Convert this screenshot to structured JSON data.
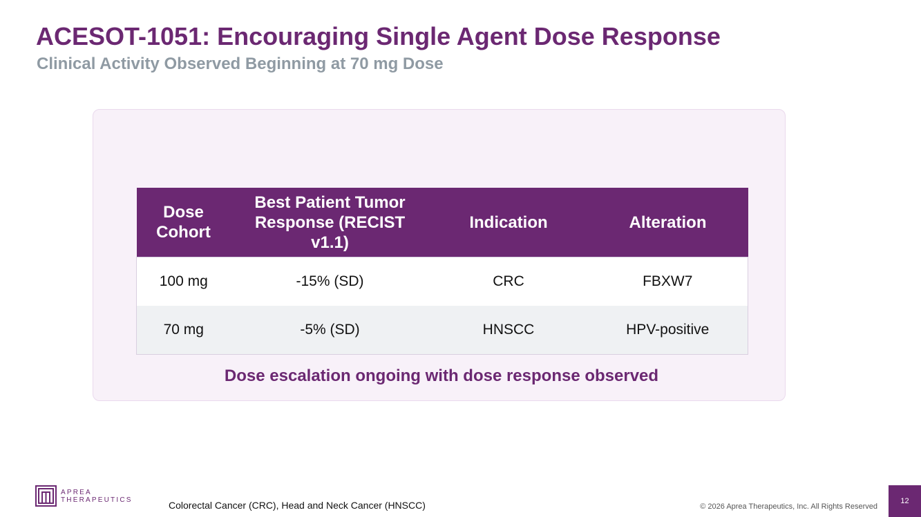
{
  "slide": {
    "title": "ACESOT-1051: Encouraging Single Agent Dose Response",
    "subtitle": "Clinical Activity Observed Beginning at 70 mg Dose"
  },
  "table": {
    "headers": [
      "Dose Cohort",
      "Best Patient Tumor Response (RECIST v1.1)",
      "Indication",
      "Alteration"
    ],
    "rows": [
      [
        "100 mg",
        "-15% (SD)",
        "CRC",
        "FBXW7"
      ],
      [
        "70 mg",
        "-5% (SD)",
        "HNSCC",
        "HPV-positive"
      ]
    ]
  },
  "callout": "Dose escalation ongoing with dose response observed",
  "footer": {
    "logo_line1": "APREA",
    "logo_line2": "THERAPEUTICS",
    "footnote": "Colorectal Cancer (CRC), Head and Neck Cancer (HNSCC)",
    "copyright": "© 2026 Aprea Therapeutics, Inc. All Rights Reserved",
    "page_number": "12"
  },
  "colors": {
    "brand_purple": "#6b2872",
    "subtitle_gray": "#8f9aa3",
    "panel_background": "#f8f1f9",
    "alt_row": "#eff1f3"
  }
}
